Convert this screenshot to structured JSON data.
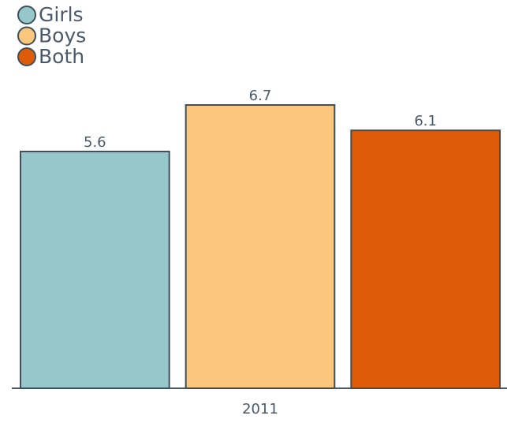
{
  "chart_data": {
    "type": "bar",
    "categories": [
      "2011"
    ],
    "series": [
      {
        "name": "Girls",
        "color": "#96c8c9",
        "values": [
          5.6
        ]
      },
      {
        "name": "Boys",
        "color": "#fac77c",
        "values": [
          6.7
        ]
      },
      {
        "name": "Both",
        "color": "#de5c07",
        "values": [
          6.1
        ]
      }
    ],
    "ylim": [
      0,
      8
    ],
    "legend": "top-left",
    "data_labels": true
  }
}
